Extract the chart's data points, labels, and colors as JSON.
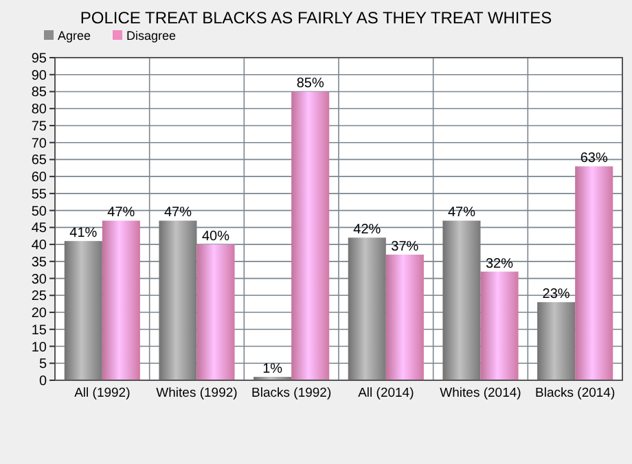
{
  "chart_data": {
    "type": "bar",
    "title": "POLICE TREAT BLACKS AS FAIRLY AS THEY TREAT WHITES",
    "categories": [
      "All (1992)",
      "Whites (1992)",
      "Blacks (1992)",
      "All (2014)",
      "Whites (2014)",
      "Blacks (2014)"
    ],
    "series": [
      {
        "name": "Agree",
        "color": "#8c8c8c",
        "values": [
          41,
          47,
          1,
          42,
          47,
          23
        ],
        "value_labels": [
          "41%",
          "47%",
          "1%",
          "42%",
          "47%",
          "23%"
        ]
      },
      {
        "name": "Disagree",
        "color": "#f08cc0",
        "values": [
          47,
          40,
          85,
          37,
          32,
          63
        ],
        "value_labels": [
          "47%",
          "40%",
          "85%",
          "37%",
          "32%",
          "63%"
        ]
      }
    ],
    "ylim": [
      0,
      95
    ],
    "yticks": [
      0,
      5,
      10,
      15,
      20,
      25,
      30,
      35,
      40,
      45,
      50,
      55,
      60,
      65,
      70,
      75,
      80,
      85,
      90,
      95
    ],
    "grid": true,
    "legend": "top left"
  }
}
